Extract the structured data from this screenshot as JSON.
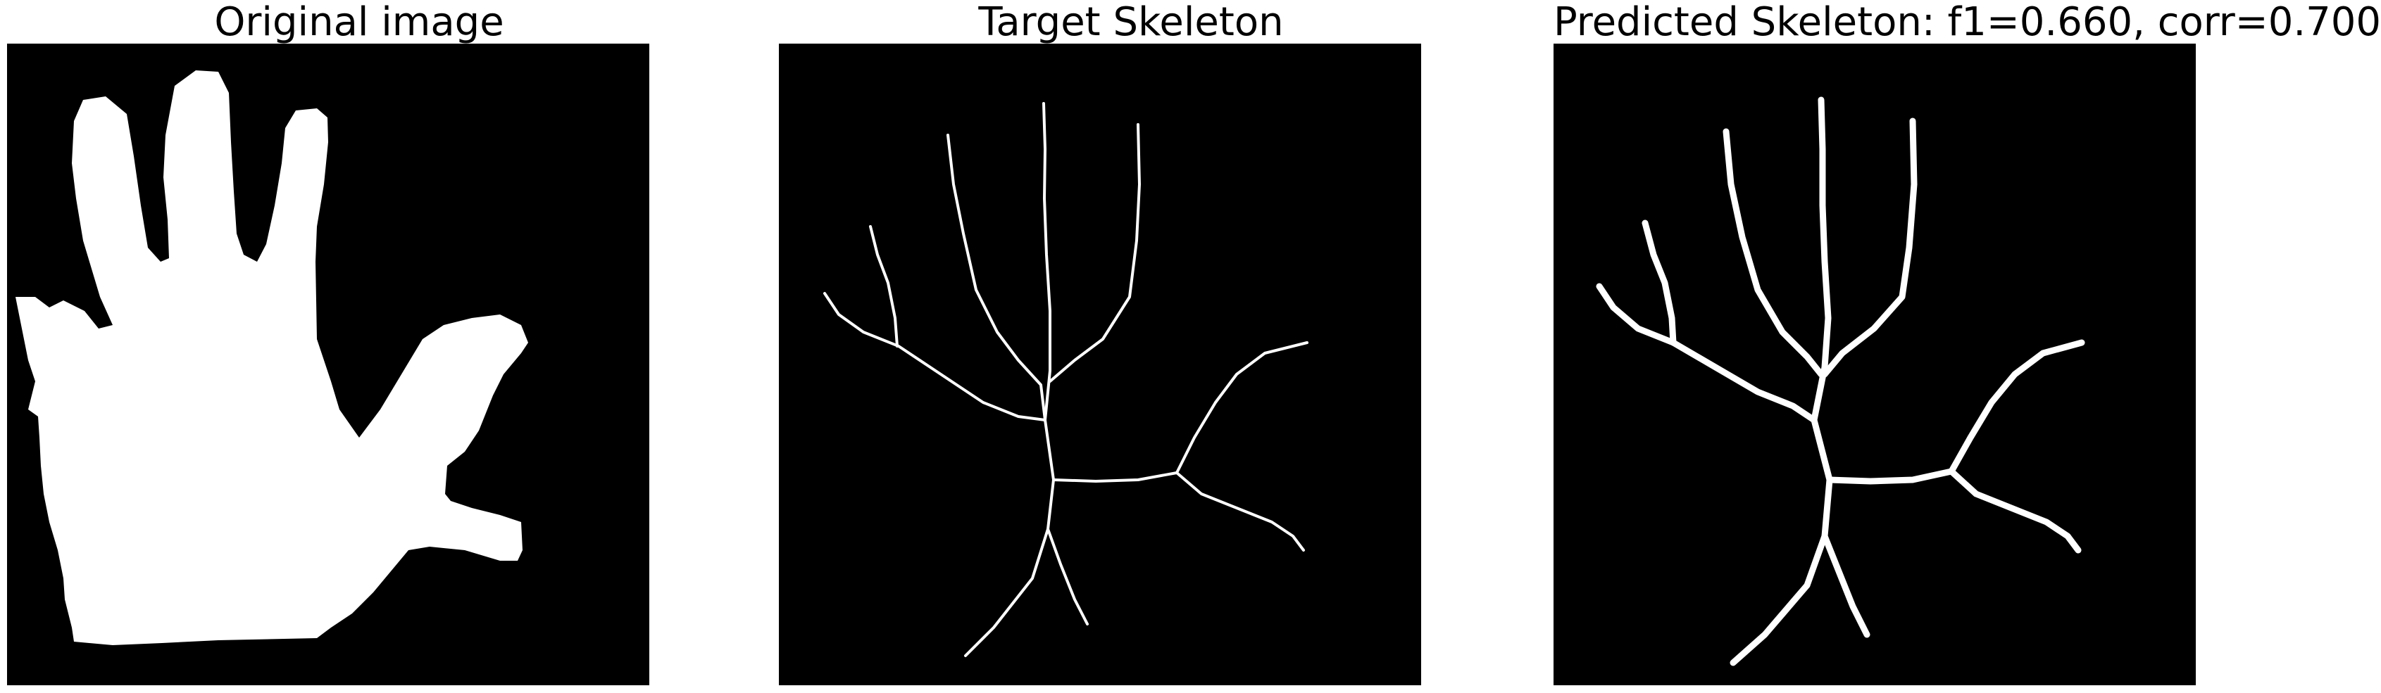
{
  "panels": [
    {
      "title": "Original image",
      "content": "hand-silhouette"
    },
    {
      "title": "Target Skeleton",
      "content": "thin-skeleton"
    },
    {
      "title": "Predicted Skeleton: f1=0.660, corr=0.700",
      "content": "thick-skeleton"
    }
  ],
  "colors": {
    "background": "#000000",
    "foreground": "#ffffff",
    "page": "#ffffff"
  }
}
